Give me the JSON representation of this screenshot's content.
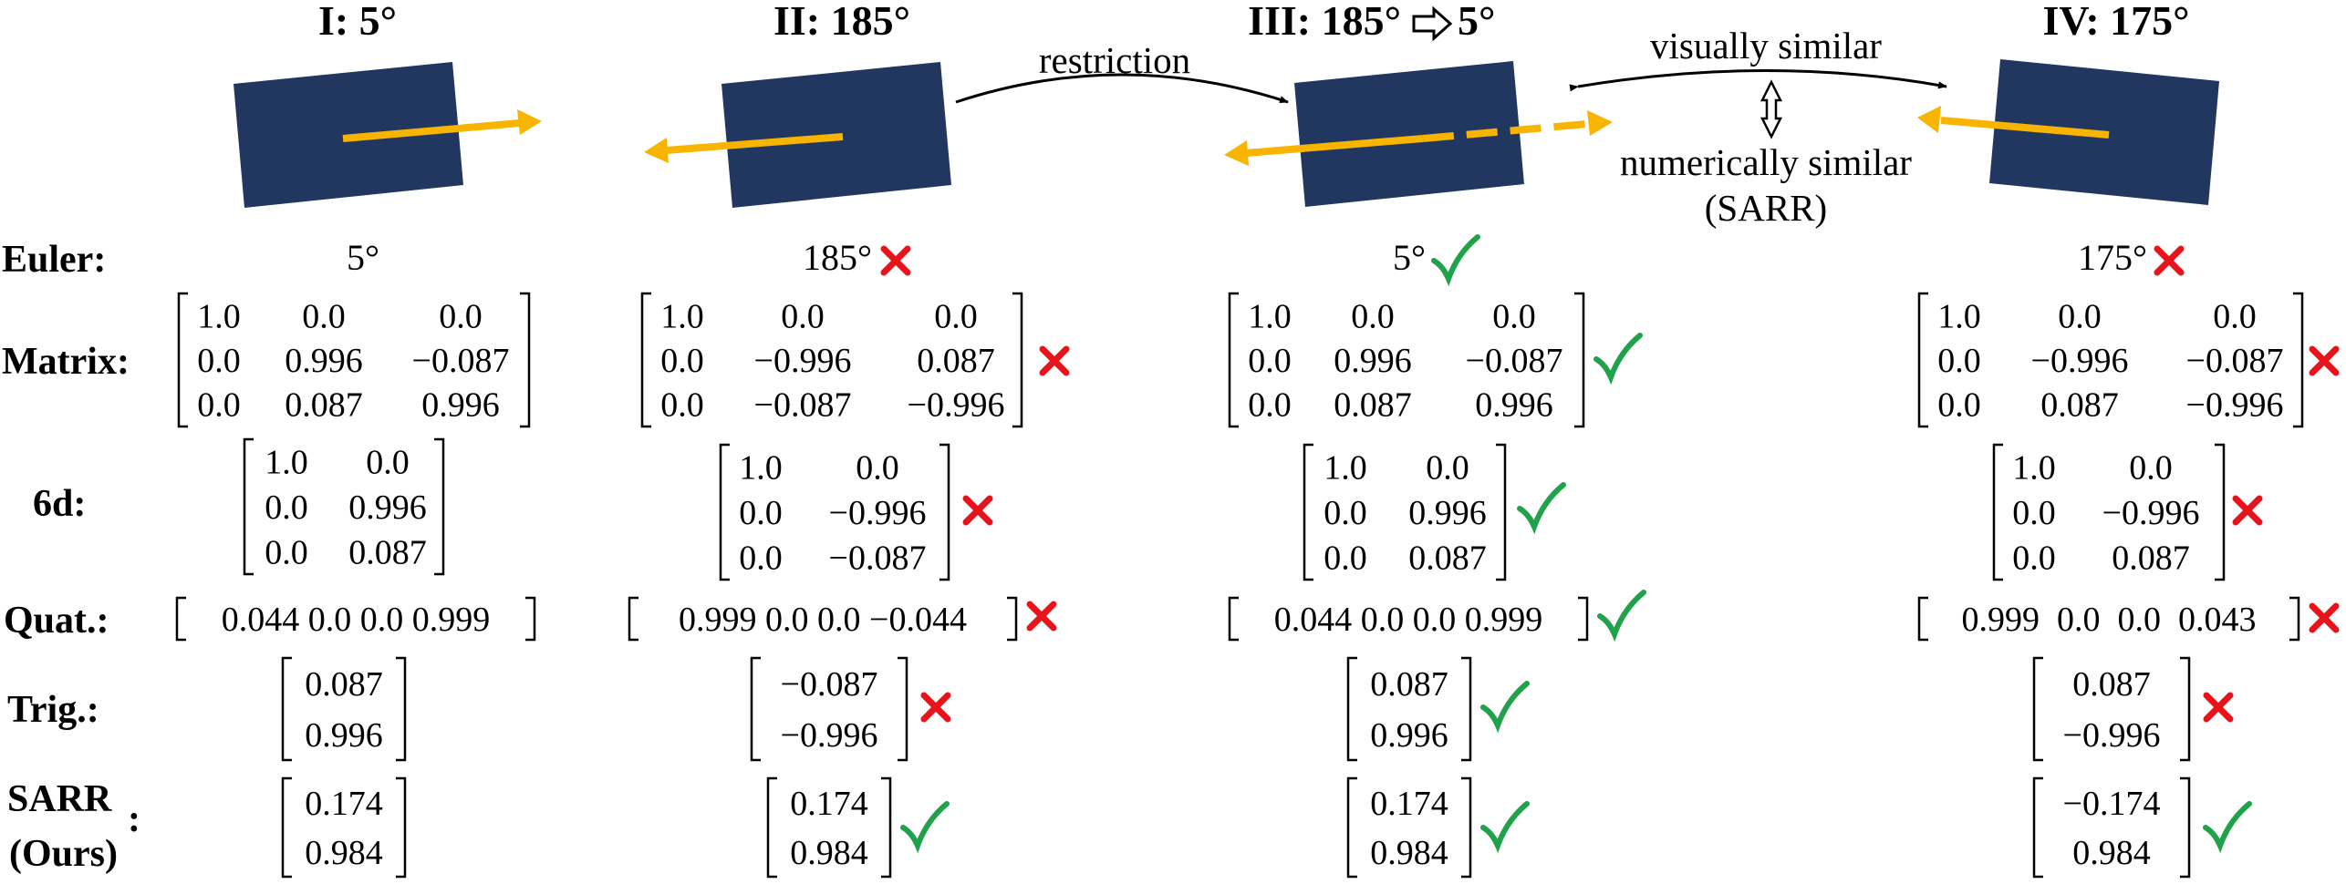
{
  "headers": {
    "col1": "I: 5°",
    "col2": "II: 185°",
    "col3_left": "III: 185°",
    "col3_right": "5°",
    "col4": "IV: 175°"
  },
  "annotations": {
    "restriction": "restriction",
    "visually_similar": "visually similar",
    "numerically_similar": "numerically similar",
    "sarr_paren": "(SARR)"
  },
  "row_labels": {
    "euler": "Euler:",
    "matrix": "Matrix:",
    "sixd": "6d:",
    "quat": "Quat.:",
    "trig": "Trig.:",
    "sarr_line1": "SARR",
    "sarr_line2": "(Ours)",
    "sarr_colon": ":"
  },
  "euler": [
    "5°",
    "185°",
    "5°",
    "175°"
  ],
  "matrix": [
    [
      [
        "1.0",
        "0.0",
        "0.0"
      ],
      [
        "0.0",
        "0.996",
        "−0.087"
      ],
      [
        "0.0",
        "0.087",
        "0.996"
      ]
    ],
    [
      [
        "1.0",
        "0.0",
        "0.0"
      ],
      [
        "0.0",
        "−0.996",
        "0.087"
      ],
      [
        "0.0",
        "−0.087",
        "−0.996"
      ]
    ],
    [
      [
        "1.0",
        "0.0",
        "0.0"
      ],
      [
        "0.0",
        "0.996",
        "−0.087"
      ],
      [
        "0.0",
        "0.087",
        "0.996"
      ]
    ],
    [
      [
        "1.0",
        "0.0",
        "0.0"
      ],
      [
        "0.0",
        "−0.996",
        "−0.087"
      ],
      [
        "0.0",
        "0.087",
        "−0.996"
      ]
    ]
  ],
  "sixd": [
    [
      [
        "1.0",
        "0.0"
      ],
      [
        "0.0",
        "0.996"
      ],
      [
        "0.0",
        "0.087"
      ]
    ],
    [
      [
        "1.0",
        "0.0"
      ],
      [
        "0.0",
        "−0.996"
      ],
      [
        "0.0",
        "−0.087"
      ]
    ],
    [
      [
        "1.0",
        "0.0"
      ],
      [
        "0.0",
        "0.996"
      ],
      [
        "0.0",
        "0.087"
      ]
    ],
    [
      [
        "1.0",
        "0.0"
      ],
      [
        "0.0",
        "−0.996"
      ],
      [
        "0.0",
        "0.087"
      ]
    ]
  ],
  "quat": [
    "0.044 0.0 0.0 0.999",
    "0.999 0.0 0.0 −0.044",
    "0.044 0.0 0.0 0.999",
    "0.999  0.0  0.0  0.043"
  ],
  "trig": [
    [
      "0.087",
      "0.996"
    ],
    [
      "−0.087",
      "−0.996"
    ],
    [
      "0.087",
      "0.996"
    ],
    [
      "0.087",
      "−0.996"
    ]
  ],
  "sarr": [
    [
      "0.174",
      "0.984"
    ],
    [
      "0.174",
      "0.984"
    ],
    [
      "0.174",
      "0.984"
    ],
    [
      "−0.174",
      "0.984"
    ]
  ],
  "marks": {
    "euler": [
      null,
      "cross",
      "check",
      "cross"
    ],
    "matrix": [
      null,
      "cross",
      "check",
      "cross"
    ],
    "sixd": [
      null,
      "cross",
      "check",
      "cross"
    ],
    "quat": [
      null,
      "cross",
      "check",
      "cross"
    ],
    "trig": [
      null,
      "cross",
      "check",
      "cross"
    ],
    "sarr": [
      null,
      "check",
      "check",
      "check"
    ]
  },
  "colors": {
    "box": "#22375f",
    "arrow": "#f7b400",
    "check": "#1fa24a",
    "cross": "#e8141b"
  }
}
